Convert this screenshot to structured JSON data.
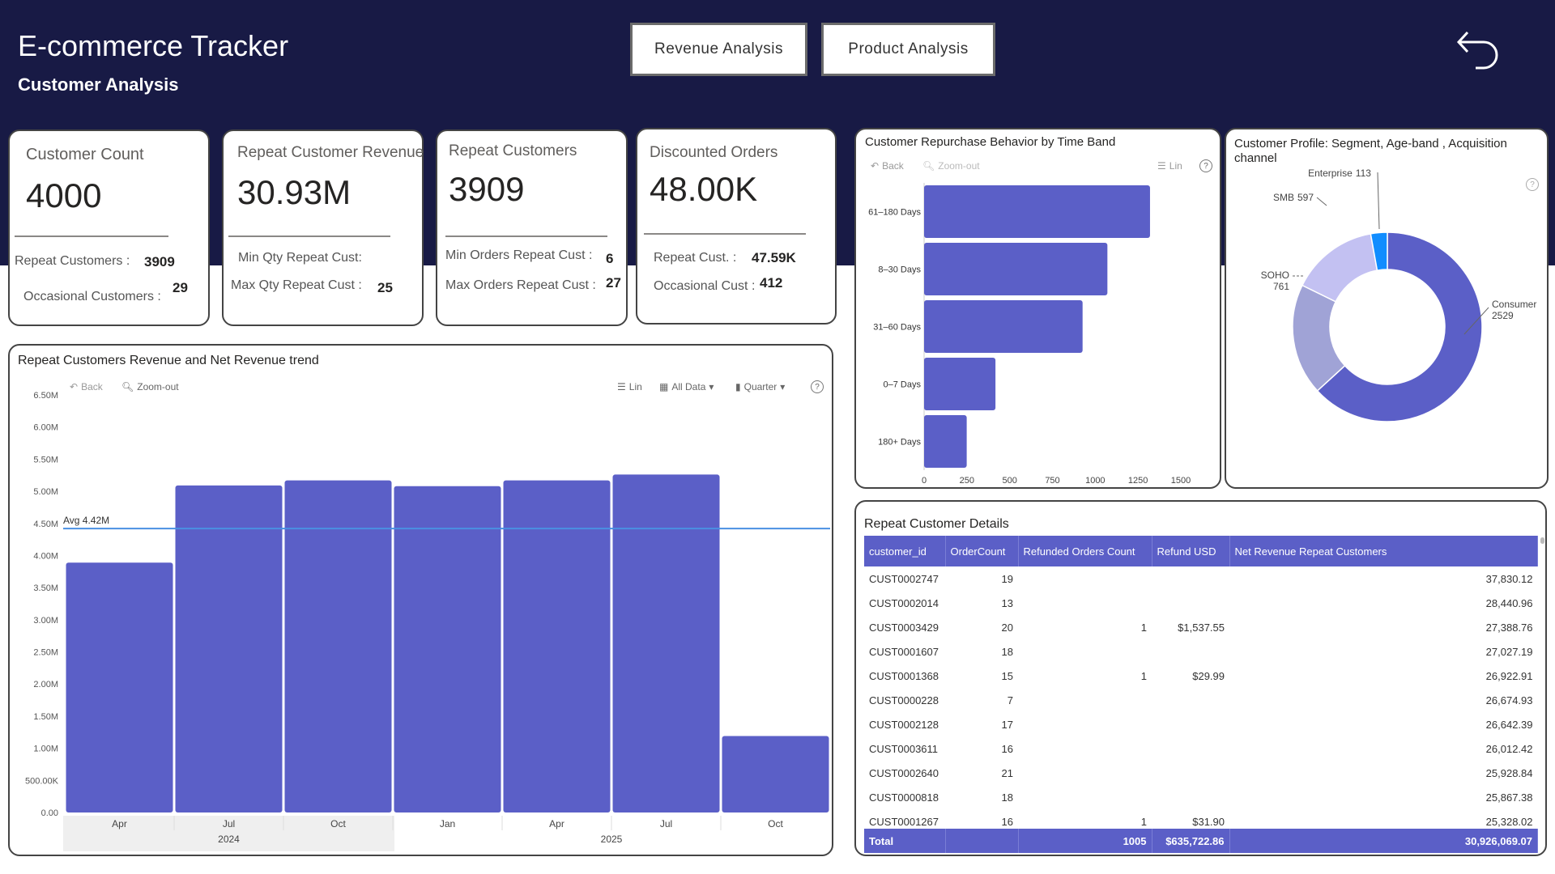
{
  "header": {
    "title": "E-commerce Tracker",
    "subtitle": "Customer Analysis",
    "nav_buttons": [
      "Revenue Analysis",
      "Product Analysis"
    ],
    "back_icon": "undo-arrow-icon"
  },
  "kpis": [
    {
      "title": "Customer Count",
      "value": "4000",
      "lines": [
        {
          "label": "Repeat Customers :",
          "value": "3909"
        },
        {
          "label": "Occasional Customers :",
          "value": "29"
        }
      ]
    },
    {
      "title": "Repeat Customer Revenue",
      "value": "30.93M",
      "lines": [
        {
          "label": "Min Qty Repeat Cust:",
          "value": ""
        },
        {
          "label": "Max Qty Repeat Cust :",
          "value": "25"
        }
      ]
    },
    {
      "title": "Repeat Customers",
      "value": "3909",
      "lines": [
        {
          "label": "Min Orders Repeat Cust :",
          "value": "6"
        },
        {
          "label": "Max Orders Repeat Cust :",
          "value": "27"
        }
      ]
    },
    {
      "title": "Discounted Orders",
      "value": "48.00K",
      "lines": [
        {
          "label": "Repeat Cust. :",
          "value": "47.59K"
        },
        {
          "label": "Occasional Cust :",
          "value": "412"
        }
      ]
    }
  ],
  "toolbar": {
    "back": "Back",
    "zoom_out": "Zoom-out",
    "lin": "Lin",
    "all_data": "All Data",
    "quarter": "Quarter",
    "help": "?"
  },
  "chart_data": [
    {
      "type": "bar",
      "title": "Repeat Customers Revenue and Net Revenue trend",
      "categories": [
        "Apr",
        "Jul",
        "Oct",
        "Jan",
        "Apr",
        "Jul",
        "Oct"
      ],
      "groups": [
        {
          "label": "2024",
          "span": 3
        },
        {
          "label": "2025",
          "span": 4
        }
      ],
      "values": [
        3890000,
        5090000,
        5170000,
        5080000,
        5170000,
        5260000,
        1190000
      ],
      "ylim": [
        0,
        6500000
      ],
      "yticks": [
        "0.00",
        "500.00K",
        "1.00M",
        "1.50M",
        "2.00M",
        "2.50M",
        "3.00M",
        "3.50M",
        "4.00M",
        "4.50M",
        "5.00M",
        "5.50M",
        "6.00M",
        "6.50M"
      ],
      "reference_line": {
        "label": "Avg 4.42M",
        "value": 4420000,
        "color": "#4a90e2"
      },
      "color": "#5b5fc7"
    },
    {
      "type": "bar",
      "orientation": "horizontal",
      "title": "Customer Repurchase Behavior by Time Band",
      "categories": [
        "61–180 Days",
        "8–30 Days",
        "31–60 Days",
        "0–7 Days",
        "180+ Days"
      ],
      "values": [
        1320,
        1071,
        926,
        417,
        249
      ],
      "xlim": [
        0,
        1500
      ],
      "xticks": [
        "0",
        "250",
        "500",
        "750",
        "1000",
        "1250",
        "1500"
      ],
      "color": "#5b5fc7"
    },
    {
      "type": "pie",
      "donut": true,
      "title": "Customer Profile: Segment, Age-band , Acquisition channel",
      "slices": [
        {
          "label": "Consumer",
          "value": 2529,
          "color": "#5b5fc7"
        },
        {
          "label": "SOHO",
          "value": 761,
          "color": "#a0a3d6"
        },
        {
          "label": "SMB",
          "value": 597,
          "color": "#c3c1f2"
        },
        {
          "label": "Enterprise",
          "value": 113,
          "color": "#118dff"
        }
      ]
    }
  ],
  "table": {
    "title": "Repeat Customer Details",
    "columns": [
      "customer_id",
      "OrderCount",
      "Refunded Orders Count",
      "Refund USD",
      "Net Revenue Repeat Customers"
    ],
    "rows": [
      [
        "CUST0002747",
        "19",
        "",
        "",
        "37,830.12"
      ],
      [
        "CUST0002014",
        "13",
        "",
        "",
        "28,440.96"
      ],
      [
        "CUST0003429",
        "20",
        "1",
        "$1,537.55",
        "27,388.76"
      ],
      [
        "CUST0001607",
        "18",
        "",
        "",
        "27,027.19"
      ],
      [
        "CUST0001368",
        "15",
        "1",
        "$29.99",
        "26,922.91"
      ],
      [
        "CUST0000228",
        "7",
        "",
        "",
        "26,674.93"
      ],
      [
        "CUST0002128",
        "17",
        "",
        "",
        "26,642.39"
      ],
      [
        "CUST0003611",
        "16",
        "",
        "",
        "26,012.42"
      ],
      [
        "CUST0002640",
        "21",
        "",
        "",
        "25,928.84"
      ],
      [
        "CUST0000818",
        "18",
        "",
        "",
        "25,867.38"
      ],
      [
        "CUST0001267",
        "16",
        "1",
        "$31.90",
        "25,328.02"
      ]
    ],
    "total": [
      "Total",
      "",
      "1005",
      "$635,722.86",
      "30,926,069.07"
    ]
  }
}
